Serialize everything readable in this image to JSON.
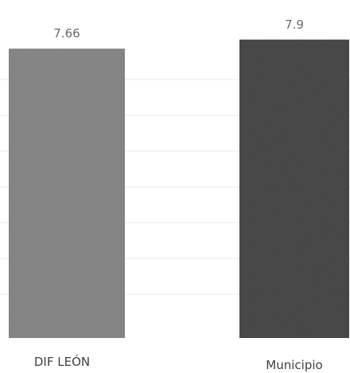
{
  "chart_data": {
    "type": "bar",
    "categories": [
      "DIF LEÓN",
      "Municipio"
    ],
    "values": [
      7.66,
      7.9
    ],
    "value_labels": [
      "7.66",
      "7.9"
    ],
    "colors": [
      "#8a8a8a",
      "#4b4b4b"
    ],
    "grid": true,
    "legend": "none"
  }
}
